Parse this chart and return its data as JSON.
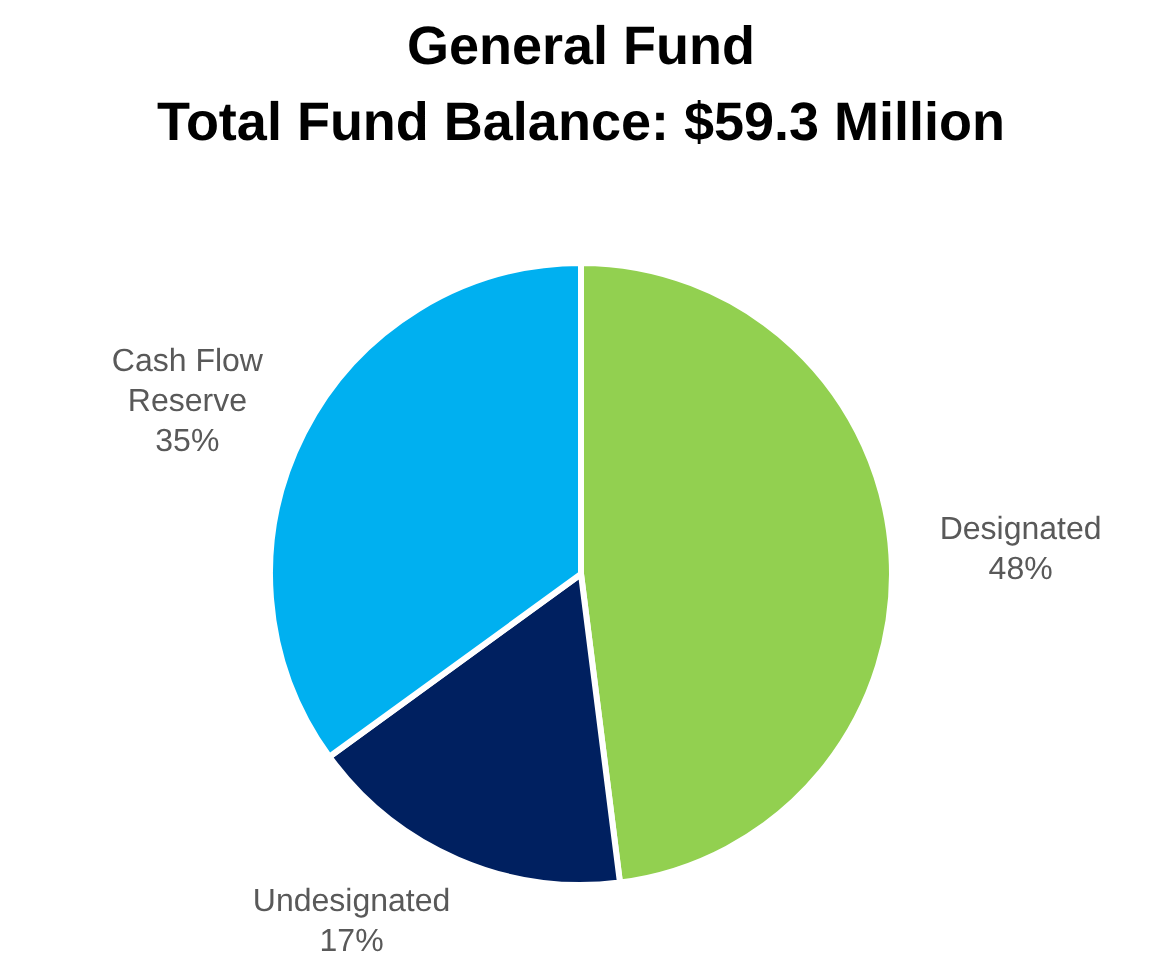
{
  "chart_data": {
    "type": "pie",
    "title": "General Fund",
    "subtitle": "Total Fund Balance: $59.3 Million",
    "categories": [
      "Designated",
      "Undesignated",
      "Cash Flow Reserve"
    ],
    "values": [
      48,
      17,
      35
    ],
    "value_labels": [
      "48%",
      "17%",
      "35%"
    ],
    "colors": [
      "#92d050",
      "#002060",
      "#00b0f0"
    ],
    "legend": false
  }
}
